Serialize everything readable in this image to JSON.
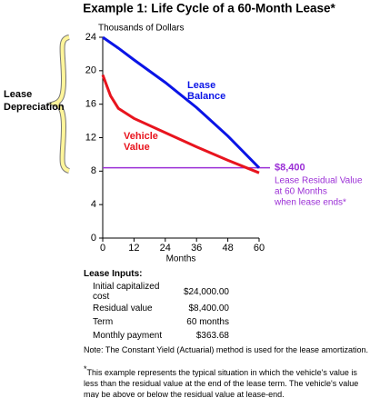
{
  "chart_data": {
    "type": "line",
    "title": "Example 1: Life Cycle of a 60-Month Lease*",
    "y_label": "Thousands of Dollars",
    "x_label": "Months",
    "x": [
      0,
      3,
      6,
      12,
      24,
      36,
      48,
      60
    ],
    "xlim": [
      0,
      60
    ],
    "xticks": [
      0,
      12,
      24,
      36,
      48,
      60
    ],
    "ylim": [
      0,
      24
    ],
    "yticks": [
      0,
      4,
      8,
      12,
      16,
      20,
      24
    ],
    "grid": false,
    "series": [
      {
        "name": "Lease Balance",
        "color": "#0a14e6",
        "values": [
          24,
          23.35,
          22.7,
          21.3,
          18.6,
          15.6,
          12.2,
          8.4
        ]
      },
      {
        "name": "Vehicle Value",
        "color": "#e8141e",
        "values": [
          19.5,
          17,
          15.5,
          14.3,
          12.6,
          10.9,
          9.3,
          7.8
        ]
      }
    ],
    "reference_line": {
      "value": 8.4,
      "label": "$8,400",
      "color": "#9b2fd6",
      "note": [
        "Lease Residual Value",
        "at 60 Months",
        "when lease ends*"
      ]
    },
    "bracket_label": [
      "Lease",
      "Depreciation"
    ]
  },
  "lease_inputs": {
    "title": "Lease Inputs:",
    "rows": [
      [
        "Initial capitalized cost",
        "$24,000.00"
      ],
      [
        "Residual value",
        "$8,400.00"
      ],
      [
        "Term",
        "60 months"
      ],
      [
        "Monthly payment",
        "$363.68"
      ]
    ]
  },
  "note": "Note: The Constant Yield (Actuarial) method is used for the lease amortization.",
  "footnote": {
    "mark": "*",
    "text": "This example represents the typical situation in which the vehicle's value is less than the residual value at the end of the lease term. The vehicle's value may be above or below the residual value at lease-end."
  }
}
